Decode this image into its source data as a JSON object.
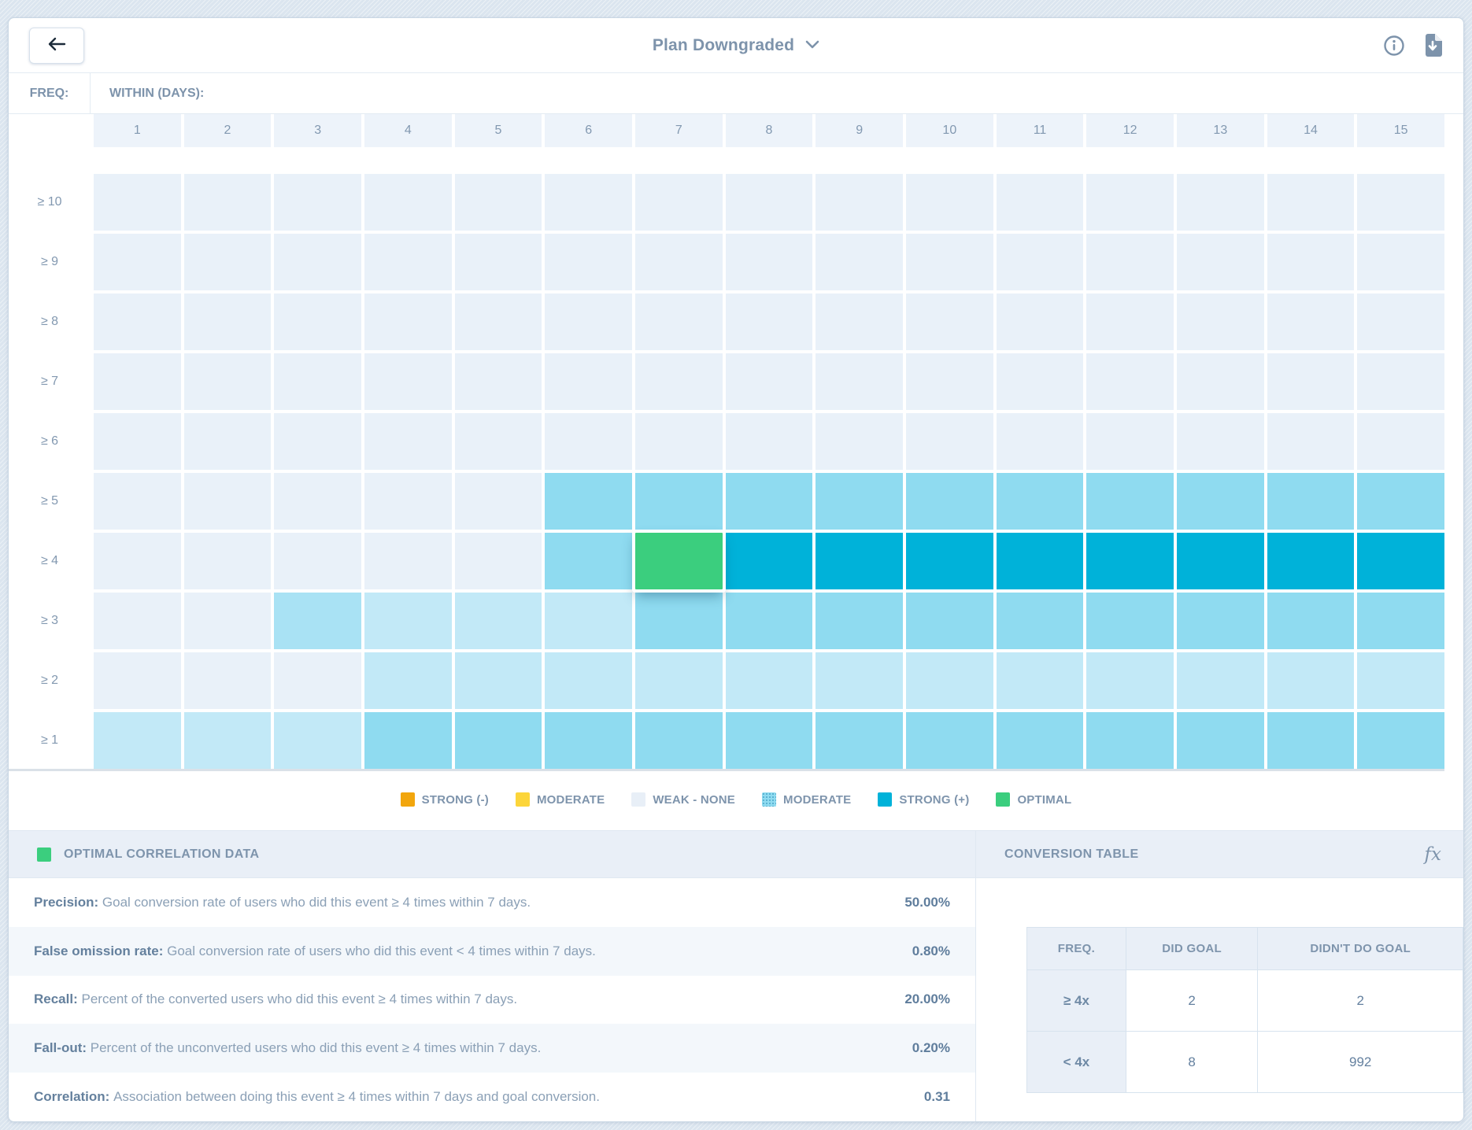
{
  "colors": {
    "cell_levels": {
      "none": "#e9f1f9",
      "light": "#c2e9f7",
      "medlight": "#a9e2f4",
      "medium": "#8fdbf0",
      "strong": "#00b2d9",
      "optimal": "#3bce7e"
    },
    "accent_green": "#3bce7e",
    "slate_text": "#7e94ac"
  },
  "toolbar": {
    "title": "Plan Downgraded"
  },
  "matrix": {
    "freq_label": "FREQ:",
    "within_label": "WITHIN (DAYS):",
    "columns": [
      "1",
      "2",
      "3",
      "4",
      "5",
      "6",
      "7",
      "8",
      "9",
      "10",
      "11",
      "12",
      "13",
      "14",
      "15"
    ],
    "rows": [
      {
        "label": "≥ 10",
        "cells": [
          "none",
          "none",
          "none",
          "none",
          "none",
          "none",
          "none",
          "none",
          "none",
          "none",
          "none",
          "none",
          "none",
          "none",
          "none"
        ]
      },
      {
        "label": "≥ 9",
        "cells": [
          "none",
          "none",
          "none",
          "none",
          "none",
          "none",
          "none",
          "none",
          "none",
          "none",
          "none",
          "none",
          "none",
          "none",
          "none"
        ]
      },
      {
        "label": "≥ 8",
        "cells": [
          "none",
          "none",
          "none",
          "none",
          "none",
          "none",
          "none",
          "none",
          "none",
          "none",
          "none",
          "none",
          "none",
          "none",
          "none"
        ]
      },
      {
        "label": "≥ 7",
        "cells": [
          "none",
          "none",
          "none",
          "none",
          "none",
          "none",
          "none",
          "none",
          "none",
          "none",
          "none",
          "none",
          "none",
          "none",
          "none"
        ]
      },
      {
        "label": "≥ 6",
        "cells": [
          "none",
          "none",
          "none",
          "none",
          "none",
          "none",
          "none",
          "none",
          "none",
          "none",
          "none",
          "none",
          "none",
          "none",
          "none"
        ]
      },
      {
        "label": "≥ 5",
        "cells": [
          "none",
          "none",
          "none",
          "none",
          "none",
          "medium",
          "medium",
          "medium",
          "medium",
          "medium",
          "medium",
          "medium",
          "medium",
          "medium",
          "medium"
        ]
      },
      {
        "label": "≥ 4",
        "cells": [
          "none",
          "none",
          "none",
          "none",
          "none",
          "medium",
          "optimal",
          "strong",
          "strong",
          "strong",
          "strong",
          "strong",
          "strong",
          "strong",
          "strong"
        ]
      },
      {
        "label": "≥ 3",
        "cells": [
          "none",
          "none",
          "medlight",
          "light",
          "light",
          "light",
          "medium",
          "medium",
          "medium",
          "medium",
          "medium",
          "medium",
          "medium",
          "medium",
          "medium"
        ]
      },
      {
        "label": "≥ 2",
        "cells": [
          "none",
          "none",
          "none",
          "light",
          "light",
          "light",
          "light",
          "light",
          "light",
          "light",
          "light",
          "light",
          "light",
          "light",
          "light"
        ]
      },
      {
        "label": "≥ 1",
        "cells": [
          "light",
          "light",
          "light",
          "medium",
          "medium",
          "medium",
          "medium",
          "medium",
          "medium",
          "medium",
          "medium",
          "medium",
          "medium",
          "medium",
          "medium"
        ]
      }
    ]
  },
  "legend": {
    "items": [
      {
        "label": "STRONG (-)",
        "color": "#f2a60d",
        "dots": false
      },
      {
        "label": "MODERATE",
        "color": "#fcd53a",
        "dots": false
      },
      {
        "label": "WEAK - NONE",
        "color": "#e8eff7",
        "dots": false
      },
      {
        "label": "MODERATE",
        "color": "#8fdbf0",
        "dots": true
      },
      {
        "label": "STRONG (+)",
        "color": "#00b2d9",
        "dots": false
      },
      {
        "label": "OPTIMAL",
        "color": "#3bce7e",
        "dots": false
      }
    ]
  },
  "optimal_panel": {
    "title": "OPTIMAL CORRELATION DATA",
    "rows": [
      {
        "name": "Precision:",
        "description": "Goal conversion rate of users who did this event ≥ 4 times within 7 days.",
        "value": "50.00%"
      },
      {
        "name": "False omission rate:",
        "description": "Goal conversion rate of users who did this event < 4 times within 7 days.",
        "value": "0.80%"
      },
      {
        "name": "Recall:",
        "description": "Percent of the converted users who did this event ≥ 4 times within 7 days.",
        "value": "20.00%"
      },
      {
        "name": "Fall-out:",
        "description": "Percent of the unconverted users who did this event ≥ 4 times within 7 days.",
        "value": "0.20%"
      },
      {
        "name": "Correlation:",
        "description": "Association between doing this event ≥ 4 times within 7 days and goal conversion.",
        "value": "0.31"
      }
    ]
  },
  "conversion_panel": {
    "title": "CONVERSION TABLE",
    "fx_label": "fx",
    "headers": [
      "FREQ.",
      "DID GOAL",
      "DIDN'T DO GOAL"
    ],
    "rows": [
      {
        "freq": "≥ 4x",
        "did": "2",
        "didnt": "2"
      },
      {
        "freq": "< 4x",
        "did": "8",
        "didnt": "992"
      }
    ]
  }
}
